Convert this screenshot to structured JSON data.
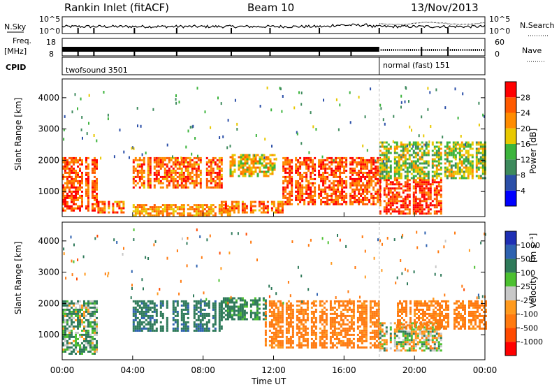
{
  "header": {
    "station": "Rankin Inlet (fitACF)",
    "beam": "Beam 10",
    "date": "13/Nov/2013"
  },
  "sky_panel": {
    "left_label": "N.Sky",
    "right_label": "N.Search",
    "left_ticks": [
      "10^5",
      "10^0"
    ],
    "right_ticks": [
      "10^5",
      "10^0"
    ]
  },
  "freq_panel": {
    "left_label_1": "Freq.",
    "left_label_2": "[MHz]",
    "right_label": "Nave",
    "left_ticks": [
      "18",
      "8"
    ],
    "right_ticks": [
      "60",
      "0"
    ]
  },
  "cpid_panel": {
    "label": "CPID",
    "modes": [
      {
        "name": "twofsound 3501",
        "start_hour": 0,
        "end_hour": 18
      },
      {
        "name": "normal (fast) 151",
        "start_hour": 18,
        "end_hour": 24
      }
    ]
  },
  "colors": {
    "power": [
      "#0000ff",
      "#2b4fa8",
      "#3d8a5c",
      "#3cb43c",
      "#e8c800",
      "#ff8c00",
      "#ff5a00",
      "#ff0000"
    ],
    "velocity_pos": [
      "#1e2fb4",
      "#2e62b0",
      "#2f7a5a",
      "#4cc030"
    ],
    "velocity_zero": "#c8c8c8",
    "velocity_neg": [
      "#ff9a1e",
      "#ff7a10",
      "#ff4a00",
      "#ff0000"
    ]
  },
  "chart_data": [
    {
      "type": "heatmap",
      "title": "Power",
      "ylabel": "Slant Range [km]",
      "xlabel": "",
      "xlim_hours": [
        0,
        24
      ],
      "ylim": [
        200,
        4600
      ],
      "yticks": [
        "1000",
        "2000",
        "3000",
        "4000"
      ],
      "colorbar": {
        "label": "Power [dB]",
        "ticks": [
          "4",
          "8",
          "12",
          "16",
          "20",
          "24",
          "28"
        ]
      },
      "echo_bands": [
        {
          "hours": [
            0,
            2.0
          ],
          "range_km": [
            400,
            2100
          ],
          "level_db": 26
        },
        {
          "hours": [
            2.0,
            3.6
          ],
          "range_km": [
            300,
            700
          ],
          "level_db": 24
        },
        {
          "hours": [
            4.0,
            9.0
          ],
          "range_km": [
            1100,
            2100
          ],
          "level_db": 25
        },
        {
          "hours": [
            4.0,
            9.5
          ],
          "range_km": [
            250,
            600
          ],
          "level_db": 22
        },
        {
          "hours": [
            9.5,
            12.0
          ],
          "range_km": [
            1500,
            2200
          ],
          "level_db": 20
        },
        {
          "hours": [
            9.0,
            12.5
          ],
          "range_km": [
            300,
            700
          ],
          "level_db": 24
        },
        {
          "hours": [
            12.5,
            18.0
          ],
          "range_km": [
            600,
            2100
          ],
          "level_db": 26
        },
        {
          "hours": [
            18.0,
            21.5
          ],
          "range_km": [
            300,
            1400
          ],
          "level_db": 28
        },
        {
          "hours": [
            18.0,
            24.0
          ],
          "range_km": [
            1400,
            2600
          ],
          "level_db": 16
        }
      ]
    },
    {
      "type": "heatmap",
      "title": "Velocity",
      "ylabel": "Slant Range [km]",
      "xlabel": "Time UT",
      "xlim_hours": [
        0,
        24
      ],
      "ylim": [
        200,
        4600
      ],
      "xticks": [
        "00:00",
        "04:00",
        "08:00",
        "12:00",
        "16:00",
        "20:00",
        "00:00"
      ],
      "yticks": [
        "1000",
        "2000",
        "3000",
        "4000"
      ],
      "colorbar": {
        "label": "Velocity",
        "unit": "[m s^-1]",
        "ticks": [
          "1000",
          "500",
          "100",
          "25",
          "-25",
          "-100",
          "-500",
          "-1000"
        ]
      },
      "echo_bands": [
        {
          "hours": [
            0,
            2.0
          ],
          "range_km": [
            400,
            2100
          ],
          "velocity_ms": 100
        },
        {
          "hours": [
            4.0,
            9.0
          ],
          "range_km": [
            1100,
            2100
          ],
          "velocity_ms": 400
        },
        {
          "hours": [
            9.0,
            11.5
          ],
          "range_km": [
            1500,
            2200
          ],
          "velocity_ms": 200
        },
        {
          "hours": [
            11.5,
            18.0
          ],
          "range_km": [
            600,
            2100
          ],
          "velocity_ms": -200
        },
        {
          "hours": [
            18.0,
            21.5
          ],
          "range_km": [
            500,
            1400
          ],
          "velocity_ms": 0
        },
        {
          "hours": [
            19.0,
            24.0
          ],
          "range_km": [
            1200,
            2100
          ],
          "velocity_ms": -200
        }
      ]
    }
  ]
}
